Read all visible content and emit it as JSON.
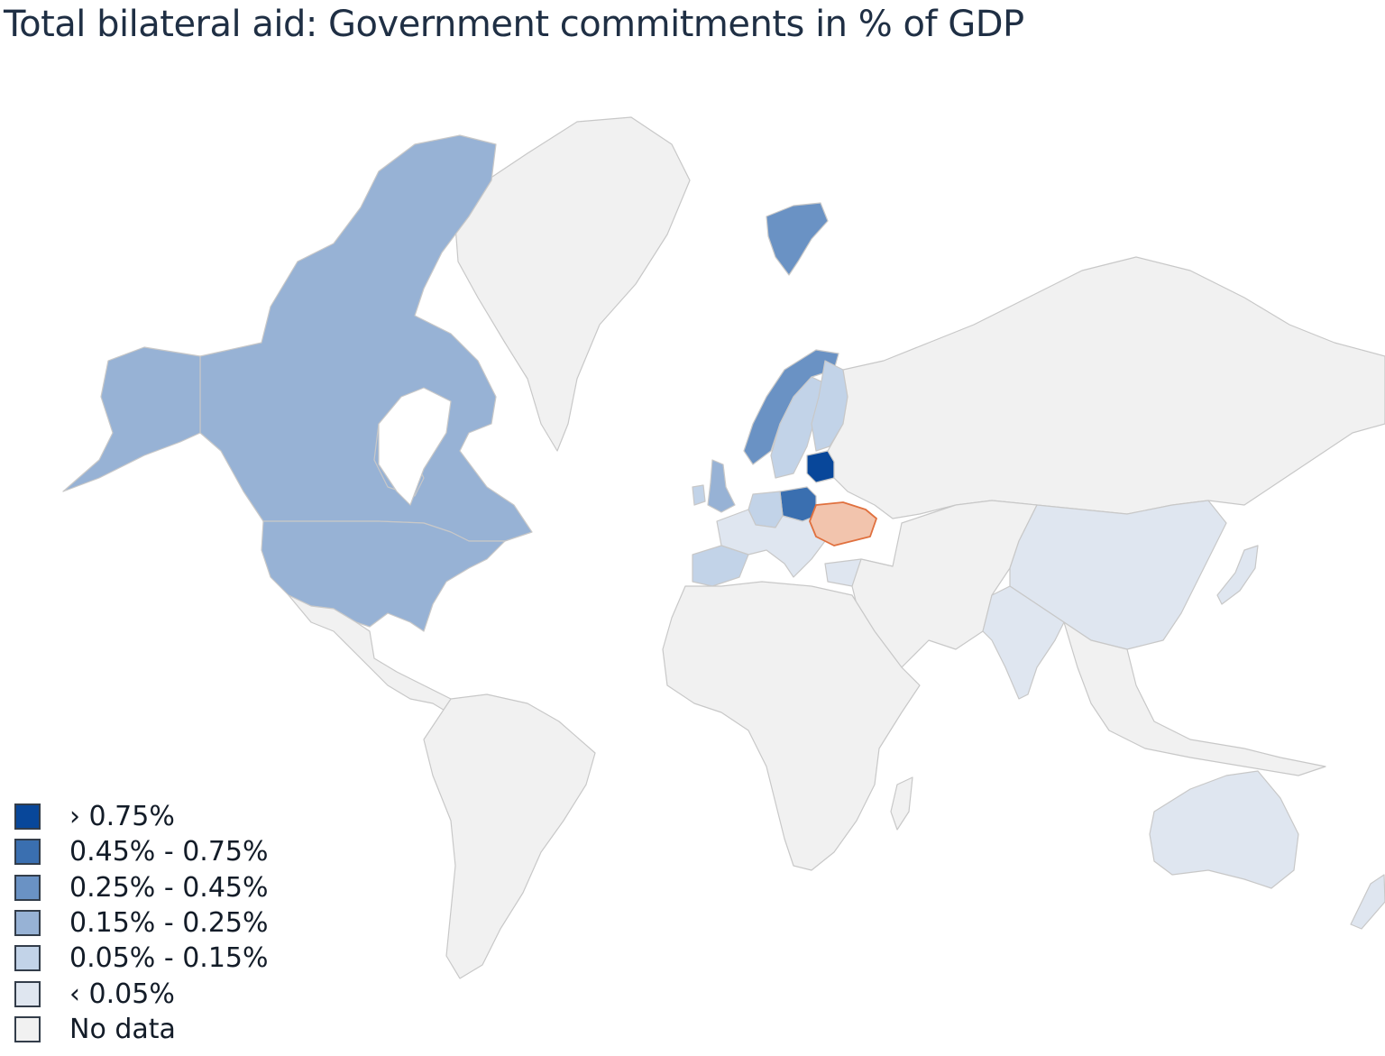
{
  "title": "Total bilateral aid: Government commitments in % of GDP",
  "colors": {
    "ocean": "#ffffff",
    "no_data": "#f1f1f1",
    "border": "#c8c8c8",
    "highlight_ukraine": "#f2c4ad",
    "highlight_ukraine_border": "#e0703e"
  },
  "legend": {
    "items": [
      {
        "label": "› 0.75%",
        "color": "#08479a"
      },
      {
        "label": "0.45% - 0.75%",
        "color": "#3a6fb0"
      },
      {
        "label": "0.25% - 0.45%",
        "color": "#6a92c4"
      },
      {
        "label": "0.15% - 0.25%",
        "color": "#97b2d5"
      },
      {
        "label": "0.05% - 0.15%",
        "color": "#c2d3e8"
      },
      {
        "label": "‹ 0.05%",
        "color": "#dfe6f0"
      },
      {
        "label": "No data",
        "color": "#f1f1f1"
      }
    ]
  },
  "regions": [
    {
      "name": "canada",
      "class": "0.15% - 0.25%"
    },
    {
      "name": "alaska",
      "class": "0.15% - 0.25%"
    },
    {
      "name": "united-states",
      "class": "0.15% - 0.25%"
    },
    {
      "name": "mexico-central-america",
      "class": "No data"
    },
    {
      "name": "south-america",
      "class": "No data"
    },
    {
      "name": "greenland",
      "class": "No data"
    },
    {
      "name": "svalbard",
      "class": "0.25% - 0.45%"
    },
    {
      "name": "norway",
      "class": "0.25% - 0.45%"
    },
    {
      "name": "sweden",
      "class": "0.05% - 0.15%"
    },
    {
      "name": "finland",
      "class": "0.05% - 0.15%"
    },
    {
      "name": "baltics",
      "class": "› 0.75%"
    },
    {
      "name": "poland",
      "class": "0.45% - 0.75%"
    },
    {
      "name": "united-kingdom",
      "class": "0.15% - 0.25%"
    },
    {
      "name": "ireland",
      "class": "0.05% - 0.15%"
    },
    {
      "name": "germany",
      "class": "0.05% - 0.15%"
    },
    {
      "name": "western-europe",
      "class": "‹ 0.05%"
    },
    {
      "name": "spain-portugal",
      "class": "0.05% - 0.15%"
    },
    {
      "name": "ukraine",
      "class": "highlight"
    },
    {
      "name": "russia",
      "class": "No data"
    },
    {
      "name": "africa",
      "class": "No data"
    },
    {
      "name": "middle-east-central-asia",
      "class": "No data"
    },
    {
      "name": "china",
      "class": "‹ 0.05%"
    },
    {
      "name": "india",
      "class": "‹ 0.05%"
    },
    {
      "name": "japan",
      "class": "‹ 0.05%"
    },
    {
      "name": "southeast-asia",
      "class": "No data"
    },
    {
      "name": "australia",
      "class": "‹ 0.05%"
    },
    {
      "name": "new-zealand",
      "class": "‹ 0.05%"
    },
    {
      "name": "turkey",
      "class": "‹ 0.05%"
    }
  ]
}
